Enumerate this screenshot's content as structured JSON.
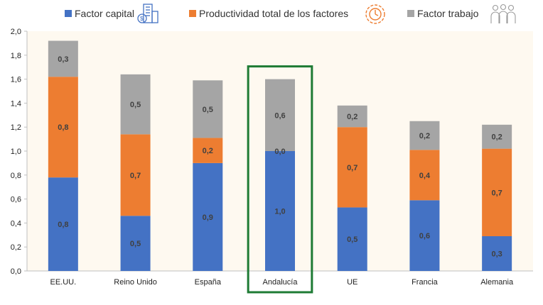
{
  "chart_data": {
    "type": "bar",
    "stacked": true,
    "categories": [
      "EE.UU.",
      "Reino Unido",
      "España",
      "Andalucía",
      "UE",
      "Francia",
      "Alemania"
    ],
    "series": [
      {
        "name": "Factor capital",
        "color": "#4472C4",
        "values": [
          0.78,
          0.46,
          0.9,
          1.0,
          0.53,
          0.59,
          0.29
        ],
        "labels": [
          "0,8",
          "0,5",
          "0,9",
          "1,0",
          "0,5",
          "0,6",
          "0,3"
        ]
      },
      {
        "name": "Productividad total de los factores",
        "color": "#ED7D31",
        "values": [
          0.84,
          0.68,
          0.21,
          0.0,
          0.67,
          0.42,
          0.73
        ],
        "labels": [
          "0,8",
          "0,7",
          "0,2",
          "0,0",
          "0,7",
          "0,4",
          "0,7"
        ]
      },
      {
        "name": "Factor trabajo",
        "color": "#A5A5A5",
        "values": [
          0.3,
          0.5,
          0.48,
          0.6,
          0.18,
          0.24,
          0.2
        ],
        "labels": [
          "0,3",
          "0,5",
          "0,5",
          "0,6",
          "0,2",
          "0,2",
          "0,2"
        ]
      }
    ],
    "yticks": [
      "0,0",
      "0,2",
      "0,4",
      "0,6",
      "0,8",
      "1,0",
      "1,2",
      "1,4",
      "1,6",
      "1,8",
      "2,0"
    ],
    "ylim": [
      0,
      2.0
    ],
    "highlight": "Andalucía",
    "highlight_color": "#1E7B34",
    "legend_position": "top",
    "legend_icons": [
      "building-money-icon",
      "clock-gear-icon",
      "people-group-icon"
    ],
    "grid": false
  }
}
